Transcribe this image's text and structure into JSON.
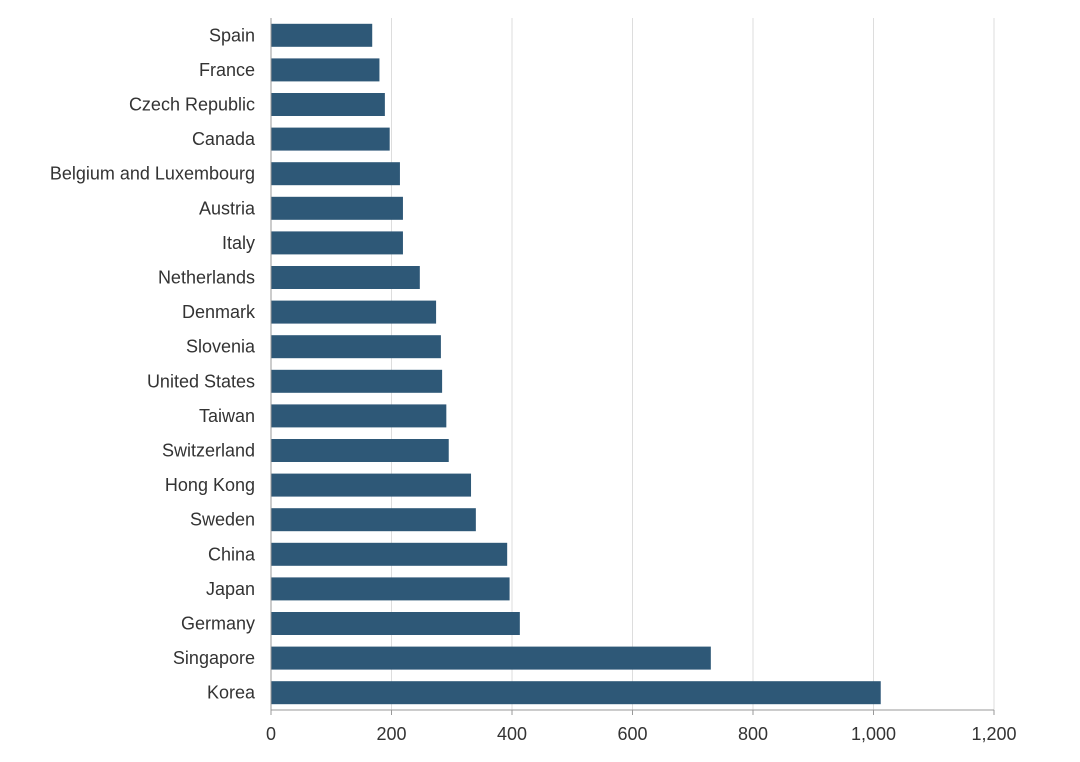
{
  "chart_data": {
    "type": "bar",
    "orientation": "horizontal",
    "title": "",
    "xlabel": "",
    "ylabel": "",
    "categories": [
      "Spain",
      "France",
      "Czech Republic",
      "Canada",
      "Belgium and Luxembourg",
      "Austria",
      "Italy",
      "Netherlands",
      "Denmark",
      "Slovenia",
      "United States",
      "Taiwan",
      "Switzerland",
      "Hong Kong",
      "Sweden",
      "China",
      "Japan",
      "Germany",
      "Singapore",
      "Korea"
    ],
    "values": [
      168,
      180,
      189,
      197,
      214,
      219,
      219,
      247,
      274,
      282,
      284,
      291,
      295,
      332,
      340,
      392,
      396,
      413,
      730,
      1012
    ],
    "xlim": [
      0,
      1200
    ],
    "xticks": [
      0,
      200,
      400,
      600,
      800,
      1000,
      1200
    ],
    "xtick_labels": [
      "0",
      "200",
      "400",
      "600",
      "800",
      "1,000",
      "1,200"
    ],
    "grid": "vertical",
    "legend": "none",
    "bar_color": "#2e5877",
    "grid_color": "#dddddd",
    "axis_color": "#999999"
  }
}
